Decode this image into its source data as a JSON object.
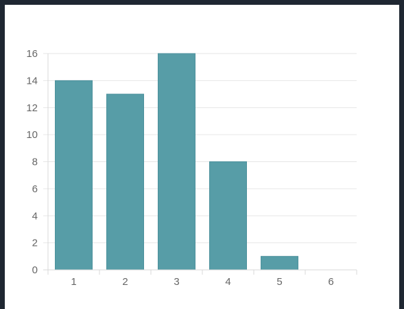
{
  "chart_data": {
    "type": "bar",
    "title": "",
    "xlabel": "",
    "ylabel": "",
    "categories": [
      "1",
      "2",
      "3",
      "4",
      "5",
      "6"
    ],
    "values": [
      14,
      13,
      16,
      8,
      1,
      0
    ],
    "ylim": [
      0,
      16
    ],
    "yticks": [
      "0",
      "2",
      "4",
      "6",
      "8",
      "10",
      "12",
      "14",
      "16"
    ],
    "grid": true,
    "legend": "none",
    "colors": {
      "bar": "#579da7",
      "bar_stroke": "#4c919c",
      "grid": "#e6e6e6",
      "axis": "#d9d9d9",
      "text": "#666666",
      "frame": "#1f2732",
      "background": "#ffffff"
    }
  }
}
